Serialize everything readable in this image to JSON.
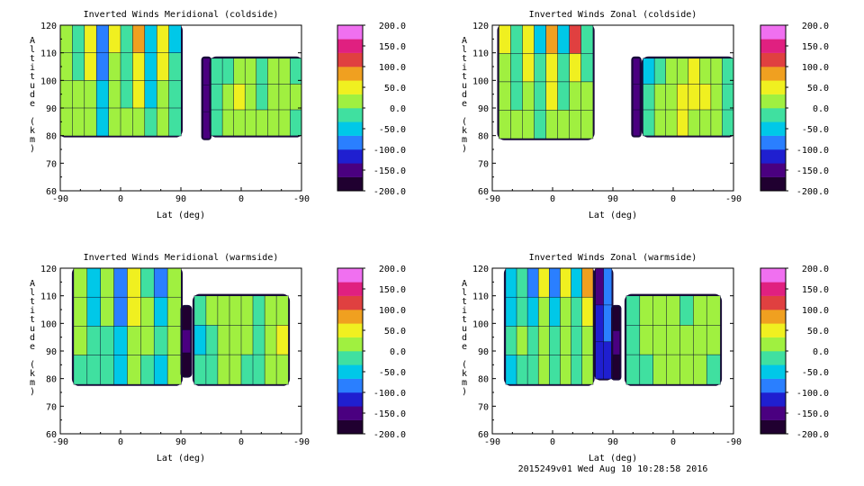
{
  "chart_data": [
    {
      "type": "heatmap",
      "title": "Inverted Winds Meridional (coldside)",
      "xlabel": "Lat (deg)",
      "ylabel": "Altitude (km)",
      "x_ticks": [
        "-90",
        "0",
        "90",
        "0",
        "-90"
      ],
      "y_ticks": [
        "60",
        "70",
        "80",
        "90",
        "100",
        "110",
        "120"
      ],
      "ylim": [
        60,
        120
      ],
      "colorbar": {
        "min": -200,
        "max": 200,
        "ticks": [
          "200.0",
          "150.0",
          "100.0",
          "50.0",
          "0.0",
          "-50.0",
          "-100.0",
          "-150.0",
          "-200.0"
        ]
      },
      "regions": [
        {
          "x_range": [
            -90,
            90
          ],
          "z_range": [
            80,
            120
          ],
          "values": [
            [
              30,
              -20,
              60,
              -80,
              40,
              -30,
              70,
              -60,
              50,
              -40
            ],
            [
              20,
              -10,
              40,
              -70,
              30,
              -20,
              60,
              -50,
              40,
              -30
            ],
            [
              10,
              0,
              20,
              -60,
              20,
              -10,
              40,
              -40,
              30,
              -20
            ],
            [
              0,
              10,
              10,
              -50,
              10,
              0,
              20,
              -30,
              20,
              -10
            ]
          ]
        },
        {
          "x_range": [
            123,
            133
          ],
          "z_range": [
            79,
            108
          ],
          "values": [
            [
              -150
            ],
            [
              -160
            ],
            [
              -150
            ]
          ]
        },
        {
          "x_range": [
            135,
            270
          ],
          "z_range": [
            80,
            108
          ],
          "values": [
            [
              -30,
              -10,
              20,
              10,
              -20,
              0,
              10,
              -10
            ],
            [
              -20,
              10,
              40,
              20,
              -10,
              30,
              20,
              0
            ],
            [
              -10,
              0,
              10,
              30,
              0,
              20,
              10,
              -20
            ]
          ]
        }
      ]
    },
    {
      "type": "heatmap",
      "title": "Inverted Winds Zonal (coldside)",
      "xlabel": "Lat (deg)",
      "ylabel": "Altitude (km)",
      "x_ticks": [
        "-90",
        "0",
        "90",
        "0",
        "-90"
      ],
      "y_ticks": [
        "60",
        "70",
        "80",
        "90",
        "100",
        "110",
        "120"
      ],
      "ylim": [
        60,
        120
      ],
      "colorbar": {
        "min": -200,
        "max": 200,
        "ticks": [
          "200.0",
          "150.0",
          "100.0",
          "50.0",
          "0.0",
          "-50.0",
          "-100.0",
          "-150.0",
          "-200.0"
        ]
      },
      "regions": [
        {
          "x_range": [
            -80,
            60
          ],
          "z_range": [
            79,
            120
          ],
          "values": [
            [
              40,
              -30,
              60,
              -40,
              80,
              -50,
              100,
              -30
            ],
            [
              20,
              -20,
              40,
              -30,
              50,
              -20,
              60,
              -10
            ],
            [
              10,
              -10,
              30,
              -20,
              40,
              -10,
              30,
              0
            ],
            [
              0,
              0,
              10,
              -10,
              20,
              0,
              10,
              10
            ]
          ]
        },
        {
          "x_range": [
            120,
            130
          ],
          "z_range": [
            80,
            108
          ],
          "values": [
            [
              -160
            ],
            [
              -150
            ],
            [
              -160
            ]
          ]
        },
        {
          "x_range": [
            135,
            270
          ],
          "z_range": [
            80,
            108
          ],
          "values": [
            [
              -40,
              -20,
              10,
              30,
              40,
              20,
              0,
              -20
            ],
            [
              -30,
              0,
              30,
              50,
              60,
              40,
              10,
              -10
            ],
            [
              -20,
              10,
              20,
              40,
              30,
              20,
              0,
              -30
            ]
          ]
        }
      ]
    },
    {
      "type": "heatmap",
      "title": "Inverted Winds Meridional (warmside)",
      "xlabel": "Lat (deg)",
      "ylabel": "Altitude (km)",
      "x_ticks": [
        "-90",
        "0",
        "90",
        "0",
        "-90"
      ],
      "y_ticks": [
        "60",
        "70",
        "80",
        "90",
        "100",
        "110",
        "120"
      ],
      "ylim": [
        60,
        120
      ],
      "colorbar": {
        "min": -200,
        "max": 200,
        "ticks": [
          "200.0",
          "150.0",
          "100.0",
          "50.0",
          "0.0",
          "-50.0",
          "-100.0",
          "-150.0",
          "-200.0"
        ]
      },
      "regions": [
        {
          "x_range": [
            -70,
            90
          ],
          "z_range": [
            78,
            120
          ],
          "values": [
            [
              20,
              -60,
              10,
              -90,
              40,
              -20,
              -80,
              30
            ],
            [
              10,
              -40,
              0,
              -70,
              60,
              20,
              -60,
              20
            ],
            [
              0,
              -20,
              -10,
              -40,
              30,
              10,
              -30,
              10
            ],
            [
              -10,
              -30,
              -20,
              -50,
              10,
              -10,
              -40,
              0
            ]
          ]
        },
        {
          "x_range": [
            92,
            104
          ],
          "z_range": [
            81,
            106
          ],
          "values": [
            [
              -170
            ],
            [
              -160
            ],
            [
              -170
            ]
          ]
        },
        {
          "x_range": [
            110,
            250
          ],
          "z_range": [
            78,
            110
          ],
          "values": [
            [
              -20,
              0,
              20,
              30,
              10,
              -10,
              30,
              10
            ],
            [
              -40,
              -10,
              10,
              20,
              0,
              -20,
              20,
              40
            ],
            [
              -30,
              -20,
              0,
              10,
              -10,
              -30,
              10,
              30
            ]
          ]
        }
      ]
    },
    {
      "type": "heatmap",
      "title": "Inverted Winds Zonal (warmside)",
      "xlabel": "Lat (deg)",
      "ylabel": "Altitude (km)",
      "x_ticks": [
        "-90",
        "0",
        "90",
        "0",
        "-90"
      ],
      "y_ticks": [
        "60",
        "70",
        "80",
        "90",
        "100",
        "110",
        "120"
      ],
      "ylim": [
        60,
        120
      ],
      "colorbar": {
        "min": -200,
        "max": 200,
        "ticks": [
          "200.0",
          "150.0",
          "100.0",
          "50.0",
          "0.0",
          "-50.0",
          "-100.0",
          "-150.0",
          "-200.0"
        ]
      },
      "regions": [
        {
          "x_range": [
            -70,
            60
          ],
          "z_range": [
            78,
            120
          ],
          "values": [
            [
              -60,
              -20,
              -80,
              40,
              -70,
              60,
              -40,
              80
            ],
            [
              -40,
              -10,
              -50,
              20,
              -40,
              30,
              -20,
              60
            ],
            [
              -30,
              0,
              -30,
              10,
              -30,
              10,
              -10,
              20
            ],
            [
              -40,
              -20,
              -30,
              0,
              -20,
              0,
              -20,
              0
            ]
          ]
        },
        {
          "x_range": [
            64,
            88
          ],
          "z_range": [
            80,
            120
          ],
          "values": [
            [
              -150,
              -100
            ],
            [
              -120,
              -90
            ],
            [
              -130,
              -110
            ]
          ]
        },
        {
          "x_range": [
            90,
            100
          ],
          "z_range": [
            80,
            106
          ],
          "values": [
            [
              -170
            ],
            [
              -160
            ],
            [
              -170
            ]
          ]
        },
        {
          "x_range": [
            110,
            250
          ],
          "z_range": [
            78,
            110
          ],
          "values": [
            [
              -20,
              10,
              20,
              0,
              -10,
              30,
              10
            ],
            [
              -30,
              0,
              10,
              30,
              20,
              10,
              0
            ],
            [
              -10,
              -20,
              0,
              10,
              30,
              0,
              -20
            ]
          ]
        }
      ]
    }
  ],
  "colorbar_colors": [
    "#200030",
    "#4a0080",
    "#1f1fd0",
    "#2a7fff",
    "#00c8e8",
    "#40e0a0",
    "#a0f040",
    "#f0f020",
    "#f0a020",
    "#e04040",
    "#e02080",
    "#f070f0"
  ],
  "footer": "2015249v01 Wed Aug 10 10:28:58 2016"
}
